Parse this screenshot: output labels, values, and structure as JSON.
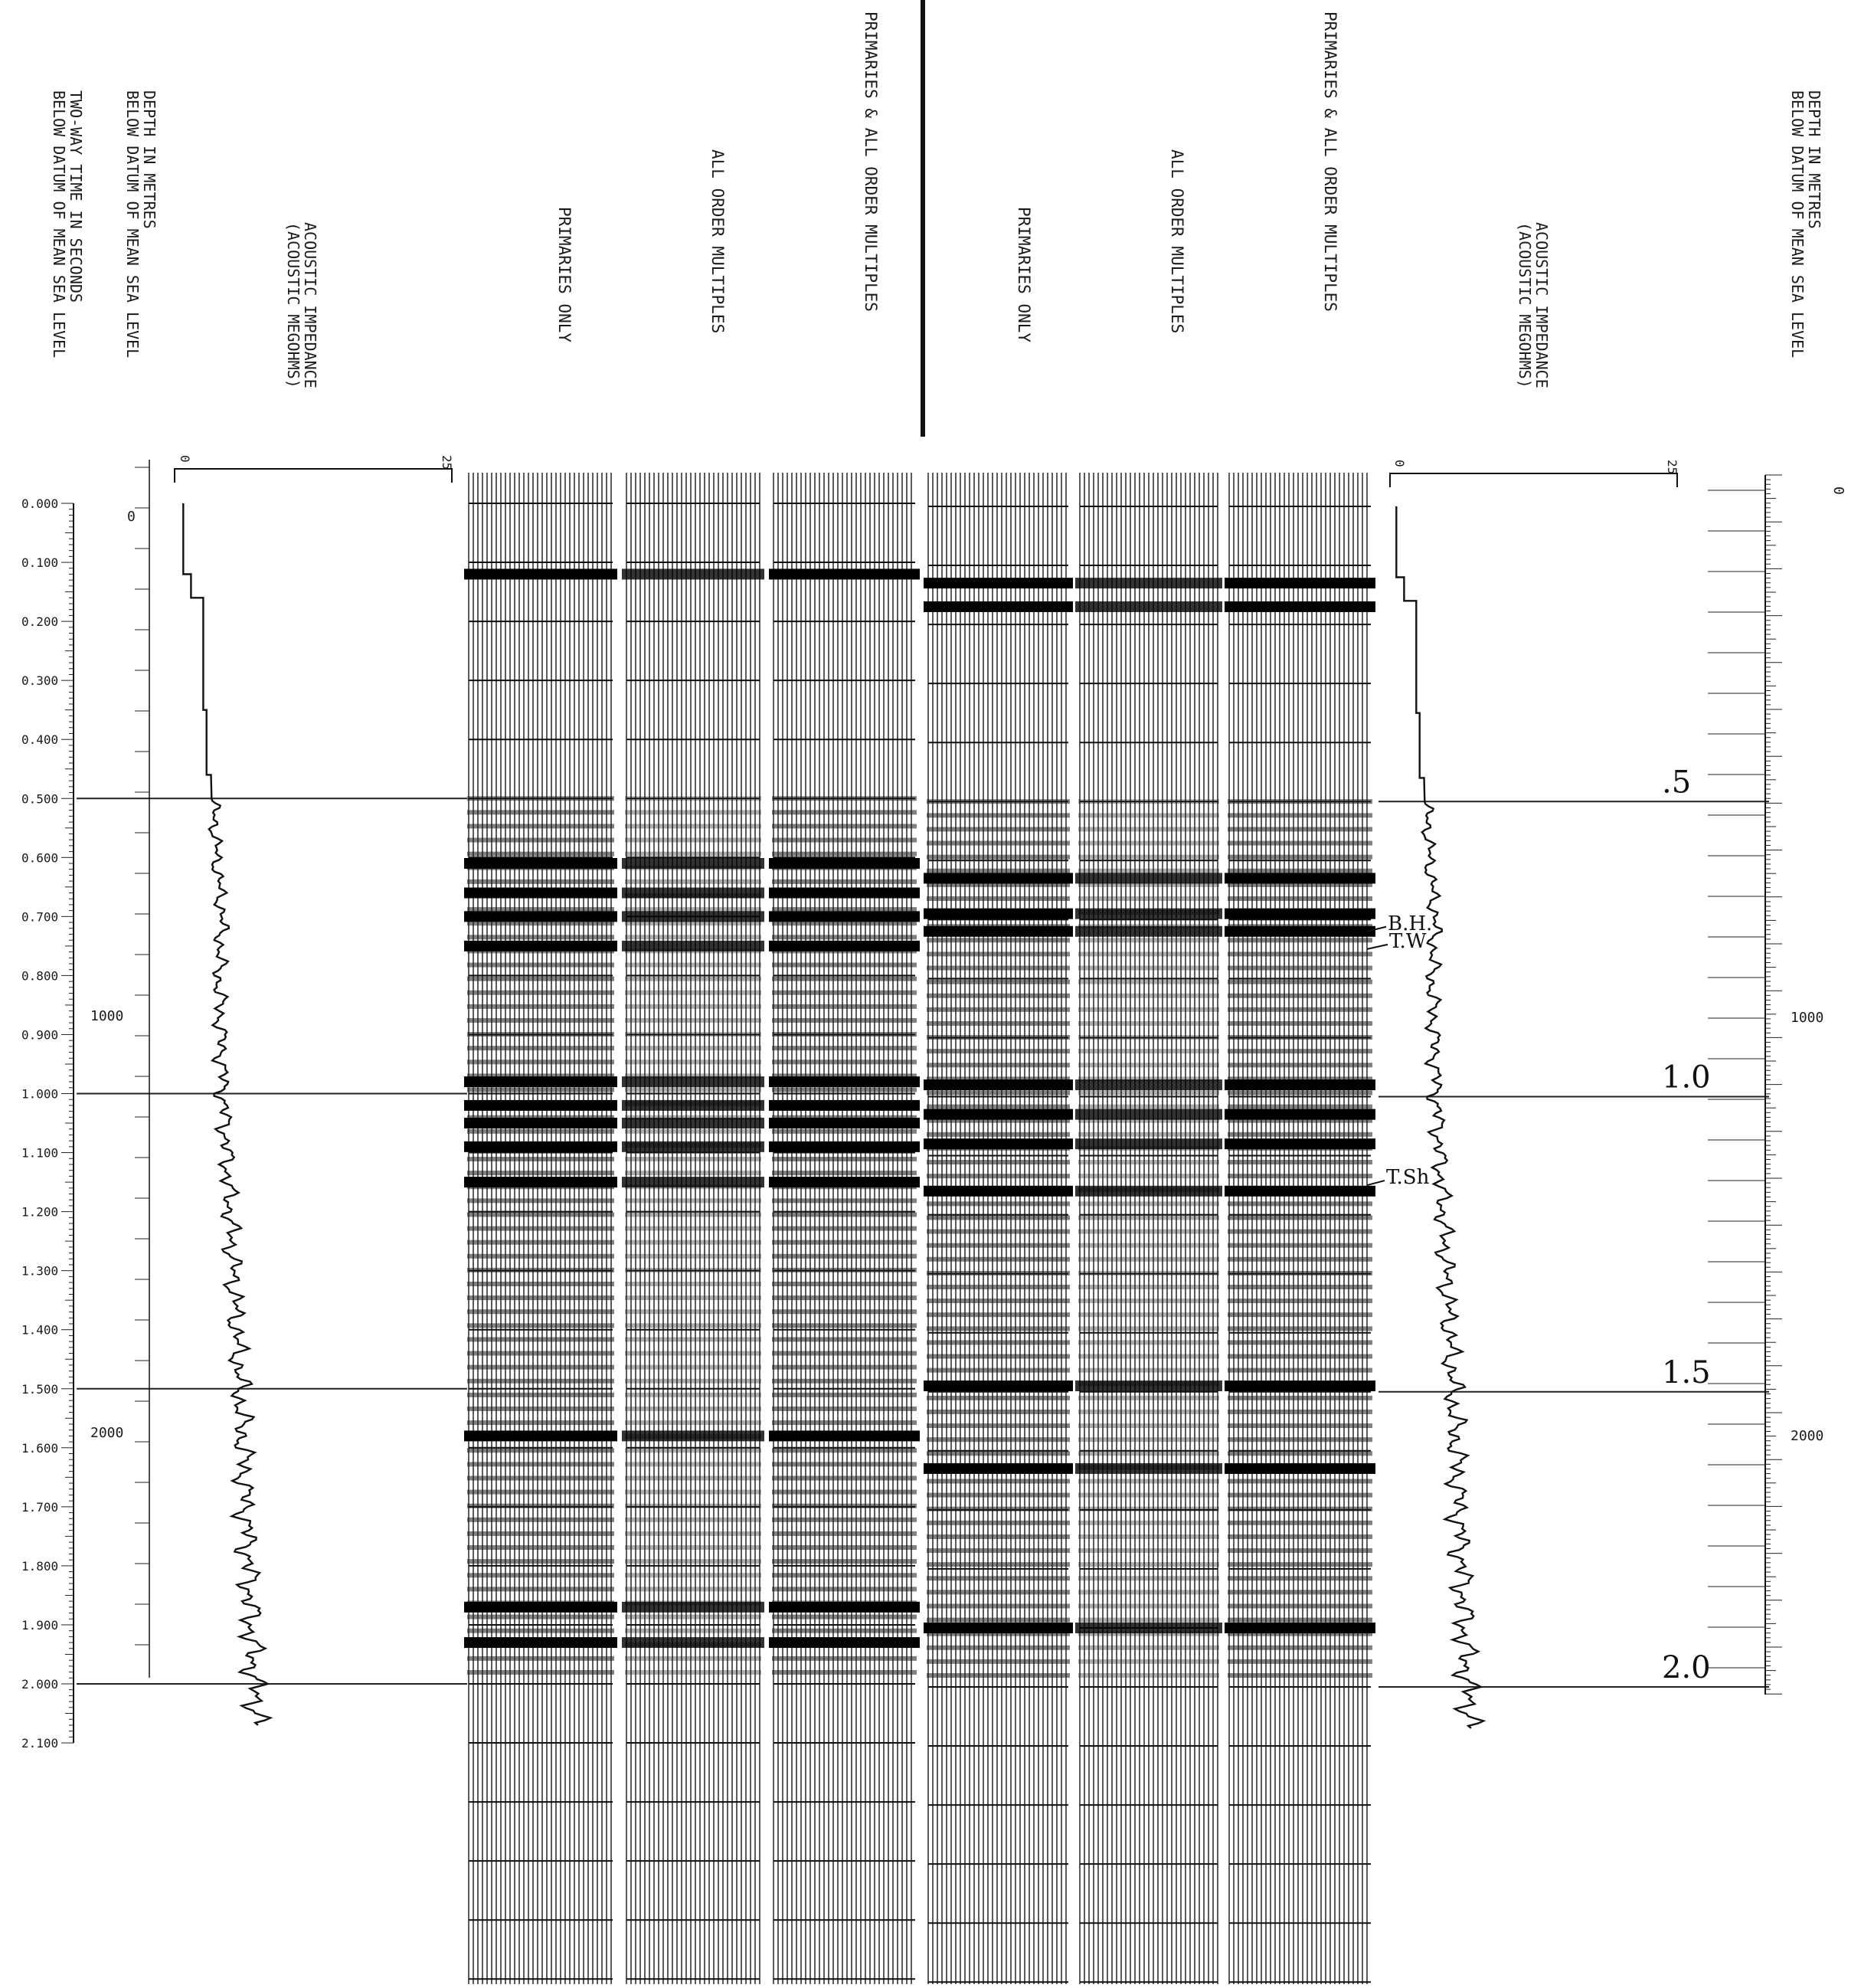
{
  "chart_data": {
    "type": "line",
    "title": "",
    "headers": {
      "left_time_axis": "TWO-WAY TIME IN SECONDS\nBELOW DATUM OF MEAN SEA LEVEL",
      "left_depth_axis": "DEPTH IN METRES\nBELOW DATUM OF MEAN SEA LEVEL",
      "right_depth_axis": "DEPTH IN METRES\nBELOW DATUM OF MEAN SEA LEVEL",
      "impedance": "ACOUSTIC IMPEDANCE\n(ACOUSTIC MEGOHMS)",
      "impedance_right": "ACOUSTIC IMPEDANCE\n(ACOUSTIC MEGOHMS)"
    },
    "panel_labels": [
      "PRIMARIES ONLY",
      "ALL ORDER MULTIPLES",
      "PRIMARIES & ALL ORDER MULTIPLES",
      "PRIMARIES ONLY",
      "ALL ORDER MULTIPLES",
      "PRIMARIES & ALL ORDER MULTIPLES"
    ],
    "time_ticks": [
      "0.000",
      "0.100",
      "0.200",
      "0.300",
      "0.400",
      "0.500",
      "0.600",
      "0.700",
      "0.800",
      "0.900",
      "1.000",
      "1.100",
      "1.200",
      "1.300",
      "1.400",
      "1.500",
      "1.600",
      "1.700",
      "1.800",
      "1.900",
      "2.000",
      "2.100"
    ],
    "time_range": [
      0,
      2.1
    ],
    "depth_labels": [
      "0",
      "1000",
      "2000"
    ],
    "impedance_scale": {
      "min_label": "0",
      "max_label": "25",
      "range": [
        0,
        25
      ]
    },
    "impedance_log": {
      "x": [
        0.0,
        0.12,
        0.12,
        0.16,
        0.16,
        0.35,
        0.35,
        0.46,
        0.46,
        0.5,
        0.6,
        0.7,
        0.8,
        0.9,
        1.0,
        1.1,
        1.2,
        1.3,
        1.4,
        1.5,
        1.6,
        1.7,
        1.8,
        1.9,
        2.0,
        2.07
      ],
      "y": [
        0.5,
        0.5,
        1.2,
        1.2,
        2.3,
        2.3,
        2.6,
        2.6,
        3.0,
        3.2,
        3.5,
        4.0,
        3.7,
        3.9,
        4.1,
        4.4,
        4.7,
        5.0,
        5.3,
        5.6,
        5.9,
        6.1,
        6.4,
        6.6,
        6.9,
        7.3
      ]
    },
    "strong_reflectors_left": [
      0.12,
      0.61,
      0.66,
      0.7,
      0.75,
      0.98,
      1.02,
      1.05,
      1.09,
      1.15,
      1.58,
      1.87,
      1.93
    ],
    "strong_reflectors_right": [
      0.13,
      0.17,
      0.63,
      0.69,
      0.72,
      0.98,
      1.03,
      1.08,
      1.16,
      1.49,
      1.63,
      1.9
    ],
    "handwritten_marks": {
      "horizon_labels": [
        "B.H.",
        "T.W",
        "T.Sh"
      ],
      "horizon_times": [
        0.72,
        0.75,
        1.15
      ],
      "time_marks": [
        ".5",
        "1.0",
        "1.5",
        "2.0"
      ],
      "time_mark_values": [
        0.5,
        1.0,
        1.5,
        2.0
      ]
    }
  }
}
